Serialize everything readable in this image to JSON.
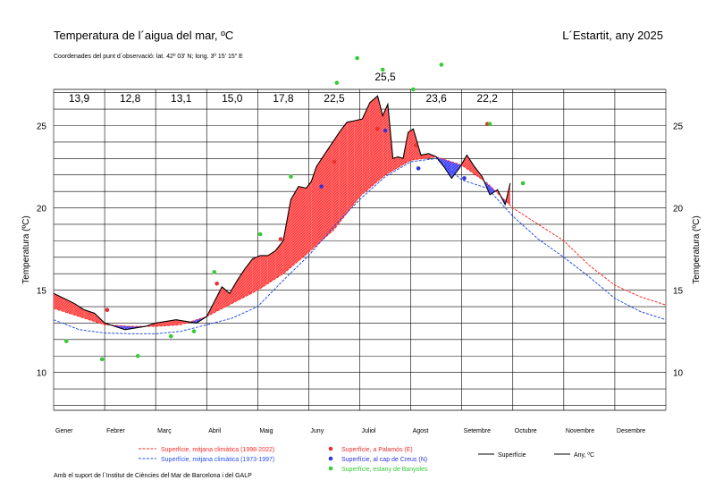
{
  "header": {
    "title": "Temperatura de l´aigua del mar, ºC",
    "location": "L´Estartit, any 2025",
    "coords": "Coordenades del punt d´observació: lat. 42º 03' N; long. 3º 15' 15\" E"
  },
  "footer": "Amb el suport de l´Institut de Ciències del Mar de Barcelona i del GALP",
  "colors": {
    "above": "#ff4444",
    "below": "#4444ff",
    "clim_recent": "#ff2a2a",
    "clim_old": "#2850e6",
    "palamos": "#e83030",
    "cap_creus": "#3333dd",
    "banyoles": "#33cc33"
  },
  "chart_data": {
    "type": "line",
    "title": "Temperatura de l´aigua del mar, ºC",
    "xlabel": "",
    "ylabel": "Temperatura (ºC)",
    "ylim": [
      7.7,
      27.2
    ],
    "yticks": [
      10,
      15,
      20,
      25
    ],
    "grid": true,
    "x_unit": "month (0 = 1 Gener, 12 = 31 Desembre)",
    "months": [
      "Gener",
      "Febrer",
      "Març",
      "Abril",
      "Maig",
      "Juny",
      "Juliol",
      "Agost",
      "Setembre",
      "Octubre",
      "Novembre",
      "Desembre"
    ],
    "monthly_means": [
      "13,9",
      "12,8",
      "13,1",
      "15,0",
      "17,8",
      "22,5",
      "25,5",
      "23,6",
      "22,2",
      "",
      "",
      ""
    ],
    "series": [
      {
        "name": "Superfície, mitjana climàtica (1998-2022)",
        "style": "dashed",
        "color": "#ff2a2a",
        "x": [
          0,
          0.5,
          1,
          1.5,
          2,
          2.5,
          3,
          3.5,
          4,
          4.5,
          5,
          5.5,
          6,
          6.5,
          7,
          7.5,
          8,
          8.5,
          9,
          9.5,
          10,
          10.5,
          11,
          11.5,
          12
        ],
        "values": [
          13.9,
          13.4,
          12.9,
          12.8,
          12.8,
          12.9,
          13.4,
          14.2,
          15.0,
          16.0,
          17.3,
          18.7,
          20.7,
          22.0,
          22.9,
          23.1,
          22.6,
          21.5,
          20.0,
          19.0,
          18.0,
          16.5,
          15.3,
          14.6,
          14.1
        ]
      },
      {
        "name": "Superfície, mitjana climàtica (1973-1997)",
        "style": "dashed",
        "color": "#2850e6",
        "x": [
          0,
          0.5,
          1,
          1.5,
          2,
          2.5,
          3,
          3.5,
          4,
          4.5,
          5,
          5.5,
          6,
          6.5,
          7,
          7.5,
          8,
          8.5,
          9,
          9.5,
          10,
          10.5,
          11,
          11.5,
          12
        ],
        "values": [
          13.2,
          12.6,
          12.4,
          12.35,
          12.35,
          12.5,
          12.9,
          13.3,
          14.0,
          15.6,
          17.1,
          18.9,
          20.5,
          21.9,
          22.8,
          23.0,
          21.7,
          21.2,
          19.5,
          18.1,
          17.0,
          15.8,
          14.5,
          13.7,
          13.2
        ]
      },
      {
        "name": "Any, ºC",
        "color": "#000000",
        "x": [
          0,
          0.2,
          0.4,
          0.6,
          0.8,
          1.0,
          1.2,
          1.4,
          1.6,
          1.8,
          2.0,
          2.2,
          2.4,
          2.6,
          2.8,
          3.0,
          3.15,
          3.3,
          3.45,
          3.6,
          3.75,
          3.9,
          4.05,
          4.2,
          4.35,
          4.5,
          4.65,
          4.8,
          4.95,
          5.05,
          5.15,
          5.3,
          5.45,
          5.6,
          5.75,
          5.9,
          6.05,
          6.2,
          6.35,
          6.45,
          6.55,
          6.65,
          6.75,
          6.85,
          6.95,
          7.05,
          7.2,
          7.35,
          7.5,
          7.65,
          7.8,
          7.95,
          8.1,
          8.25,
          8.4,
          8.55,
          8.7,
          8.85,
          8.95
        ],
        "values": [
          14.8,
          14.5,
          14.2,
          13.8,
          13.6,
          13.0,
          12.8,
          12.6,
          12.7,
          12.8,
          13.0,
          13.1,
          13.2,
          13.1,
          13.0,
          13.4,
          14.3,
          15.2,
          14.8,
          15.6,
          16.3,
          16.9,
          17.1,
          17.1,
          17.4,
          18.0,
          20.5,
          21.3,
          21.2,
          21.6,
          22.5,
          23.2,
          23.9,
          24.6,
          25.2,
          25.3,
          25.4,
          26.4,
          26.8,
          25.6,
          26.3,
          23.0,
          23.1,
          23.0,
          24.6,
          24.8,
          23.2,
          23.3,
          23.1,
          22.5,
          21.8,
          22.4,
          23.2,
          22.5,
          21.9,
          20.8,
          21.1,
          20.2,
          21.5
        ]
      }
    ],
    "points": [
      {
        "name": "Superfície, a Palamós (E)",
        "color": "#e83030",
        "x": [
          1.05,
          3.2,
          4.45,
          5.5,
          6.35,
          7.1,
          8.5
        ],
        "y": [
          13.8,
          15.4,
          18.1,
          22.8,
          24.8,
          23.8,
          25.1
        ]
      },
      {
        "name": "Superfície, al cap de Creus (N)",
        "color": "#3333dd",
        "x": [
          5.25,
          6.5,
          7.15,
          8.05
        ],
        "y": [
          21.3,
          24.7,
          22.4,
          21.8
        ]
      },
      {
        "name": "Superfície, estany de Banyoles",
        "color": "#33cc33",
        "x": [
          0.25,
          0.95,
          1.65,
          2.3,
          2.75,
          3.15,
          4.05,
          4.65,
          5.55,
          5.95,
          6.45,
          7.05,
          7.6,
          8.55,
          9.2
        ],
        "y": [
          11.9,
          10.8,
          11.0,
          12.2,
          12.5,
          16.1,
          18.4,
          21.9,
          27.6,
          29.1,
          28.4,
          27.2,
          28.7,
          25.1,
          21.5
        ]
      }
    ],
    "legend": {
      "placement": "bottom",
      "entries": [
        {
          "label": "Superfície, mitjana climàtica (1998-2022)",
          "kind": "dashed-red"
        },
        {
          "label": "Superfície, mitjana climàtica (1973-1997)",
          "kind": "dashed-blue"
        },
        {
          "label": "Superfície, a Palamós (E)",
          "kind": "dot-red"
        },
        {
          "label": "Superfície, al cap de Creus (N)",
          "kind": "dot-blue"
        },
        {
          "label": "Superfície, estany de Banyoles",
          "kind": "dot-green"
        },
        {
          "label": "Superfície",
          "kind": "line"
        },
        {
          "label": "Any,   ºC",
          "kind": "line"
        }
      ]
    }
  }
}
